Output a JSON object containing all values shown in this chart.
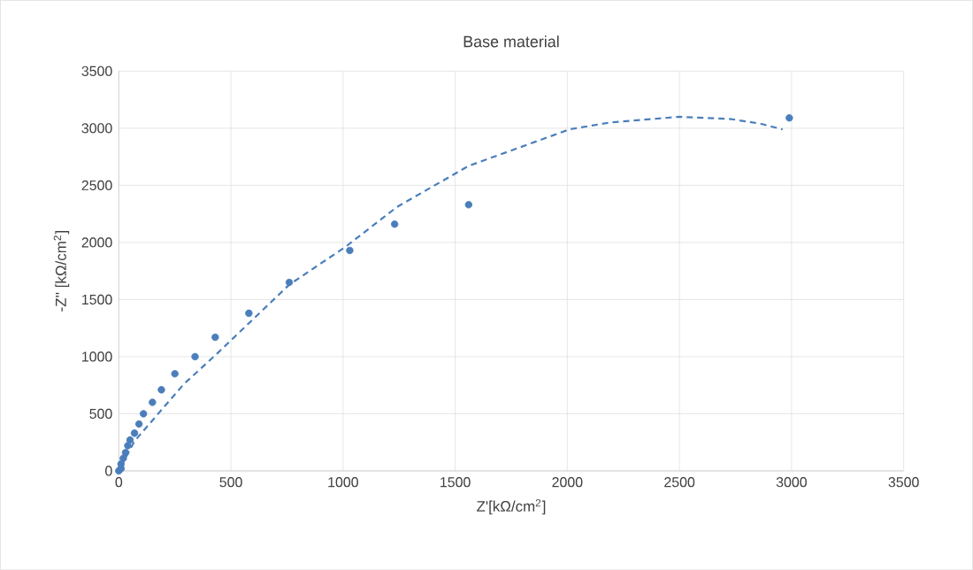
{
  "chart_data": {
    "type": "scatter",
    "title": "Base material",
    "xlabel": "Z'[kΩ/cm$^{2}$]",
    "ylabel": "-Z'' [kΩ/cm$^{2}$]",
    "xlim": [
      0,
      3500
    ],
    "ylim": [
      0,
      3500
    ],
    "xticks": [
      0,
      500,
      1000,
      1500,
      2000,
      2500,
      3000,
      3500
    ],
    "yticks": [
      0,
      500,
      1000,
      1500,
      2000,
      2500,
      3000,
      3500
    ],
    "grid": true,
    "series": [
      {
        "color": "#4a7ebb",
        "marker": "circle",
        "x": [
          0,
          10,
          10,
          20,
          30,
          40,
          50,
          70,
          90,
          110,
          150,
          190,
          250,
          340,
          430,
          580,
          760,
          1030,
          1230,
          1560,
          2990
        ],
        "values": [
          0,
          20,
          60,
          110,
          160,
          220,
          270,
          330,
          410,
          500,
          600,
          710,
          850,
          1000,
          1170,
          1380,
          1650,
          1930,
          2160,
          2330,
          3090
        ]
      },
      {
        "type": "line",
        "color": "#4a7ebb",
        "line_style": "dashed",
        "marker": "none",
        "x": [
          10,
          70,
          290,
          440,
          760,
          1010,
          1240,
          1560,
          2010,
          2190,
          2500,
          2730,
          2860,
          2960
        ],
        "values": [
          40,
          260,
          760,
          1030,
          1630,
          1960,
          2310,
          2670,
          2990,
          3050,
          3100,
          3080,
          3040,
          2990
        ]
      }
    ]
  }
}
